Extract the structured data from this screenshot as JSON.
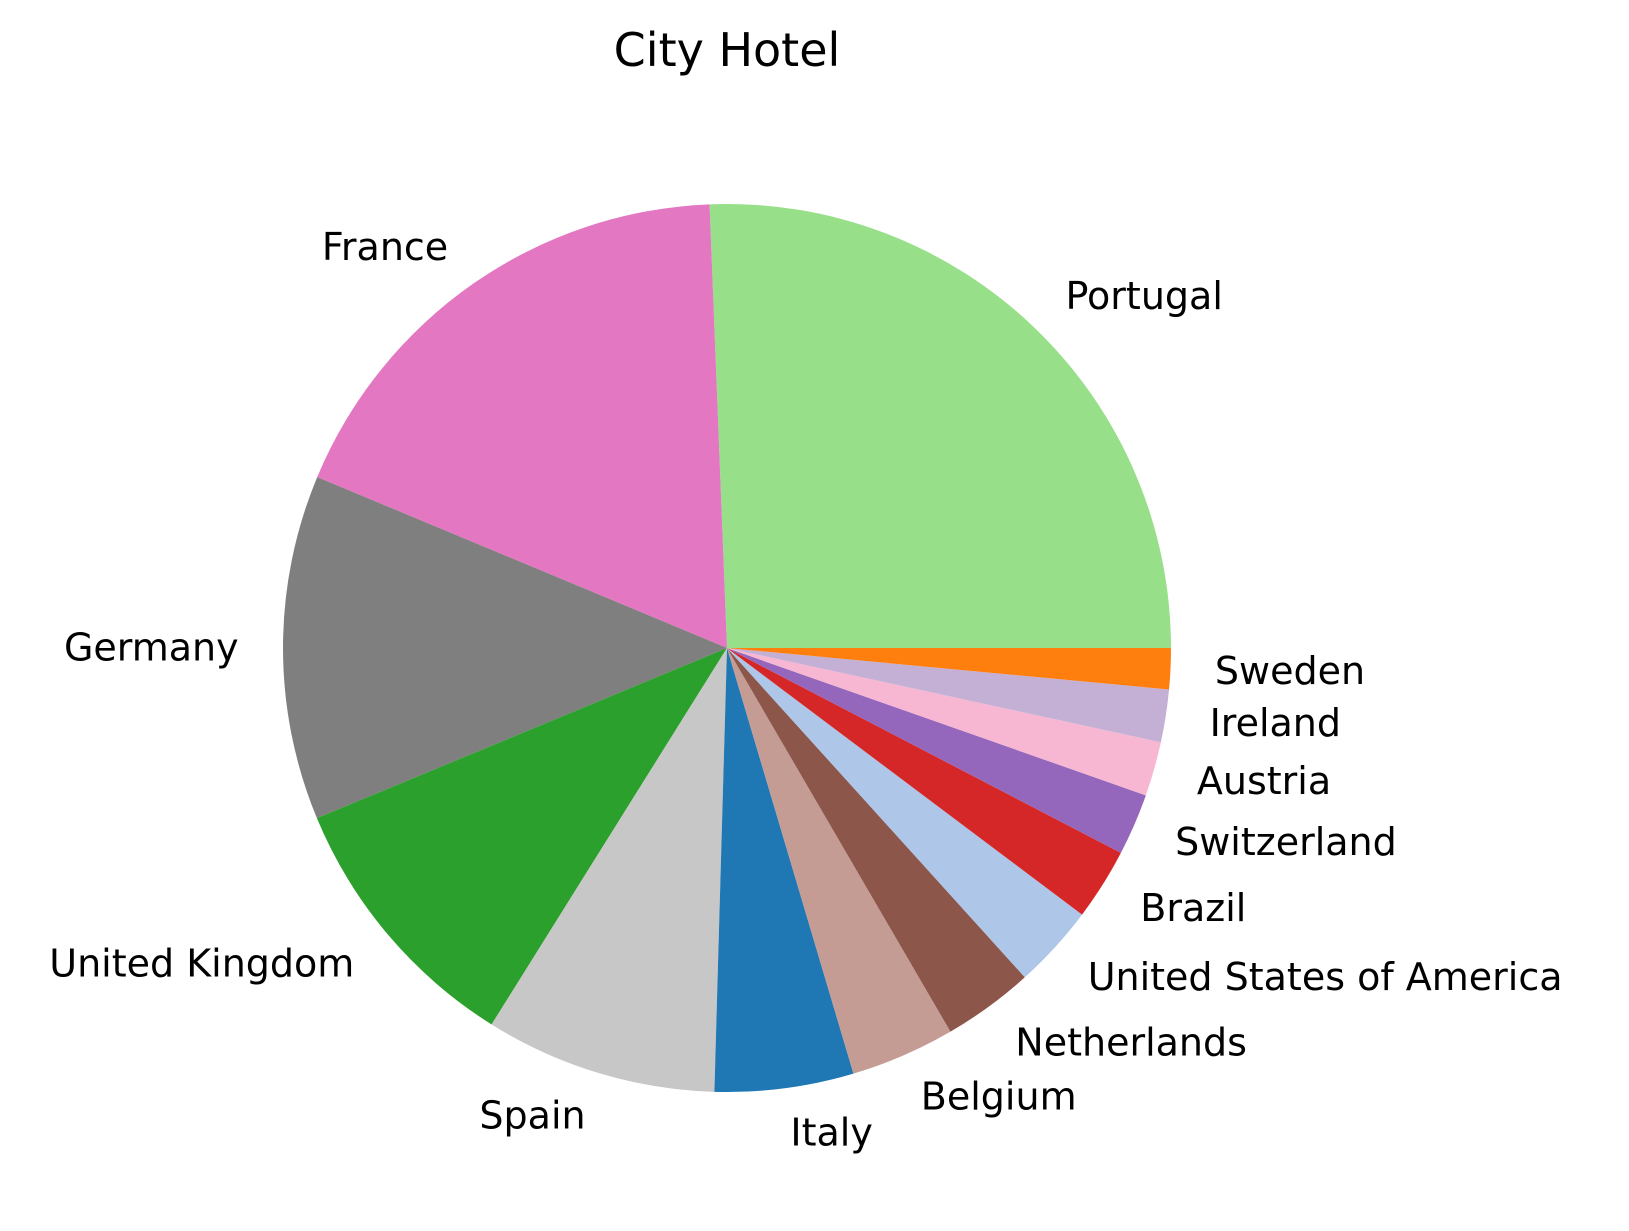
{
  "chart_data": {
    "type": "pie",
    "title": "City Hotel",
    "start_angle_deg": 0,
    "direction": "counterclockwise",
    "slices": [
      {
        "label": "Portugal",
        "value": 26.65,
        "color": "#98df8a"
      },
      {
        "label": "France",
        "value": 18.81,
        "color": "#e377c2"
      },
      {
        "label": "Germany",
        "value": 13.05,
        "color": "#7f7f7f"
      },
      {
        "label": "United Kingdom",
        "value": 10.24,
        "color": "#2ca02c"
      },
      {
        "label": "Spain",
        "value": 8.78,
        "color": "#c7c7c7"
      },
      {
        "label": "Italy",
        "value": 5.25,
        "color": "#1f77b4"
      },
      {
        "label": "Belgium",
        "value": 3.95,
        "color": "#c49c94"
      },
      {
        "label": "Netherlands",
        "value": 3.44,
        "color": "#8c564b"
      },
      {
        "label": "United States of America",
        "value": 3.17,
        "color": "#aec7e8"
      },
      {
        "label": "Brazil",
        "value": 2.72,
        "color": "#d62728"
      },
      {
        "label": "Switzerland",
        "value": 2.34,
        "color": "#9467bd"
      },
      {
        "label": "Austria",
        "value": 2.06,
        "color": "#f7b6d2"
      },
      {
        "label": "Ireland",
        "value": 1.99,
        "color": "#c5b0d5"
      },
      {
        "label": "Sweden",
        "value": 1.55,
        "color": "#ff7f0e"
      }
    ]
  }
}
